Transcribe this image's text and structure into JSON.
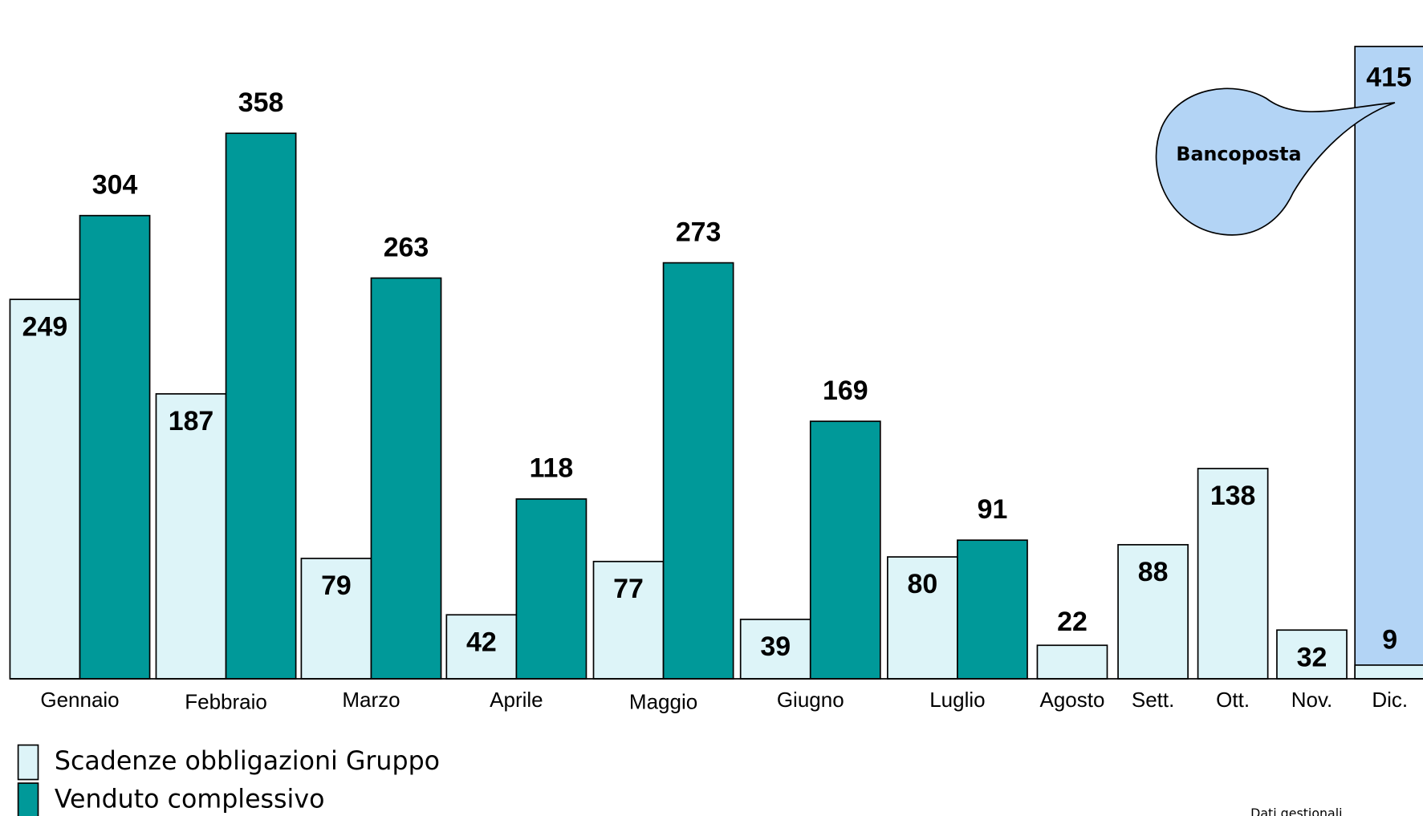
{
  "chart_data": {
    "type": "bar",
    "categories": [
      "Gennaio",
      "Febbraio",
      "Marzo",
      "Aprile",
      "Maggio",
      "Giugno",
      "Luglio",
      "Agosto",
      "Sett.",
      "Ott.",
      "Nov.",
      "Dic."
    ],
    "series": [
      {
        "name": "Scadenze obbligazioni Gruppo",
        "color": "#ddf4f8",
        "values": [
          249,
          187,
          79,
          42,
          77,
          39,
          80,
          22,
          88,
          138,
          32,
          9
        ]
      },
      {
        "name": "Venduto complessivo",
        "color": "#009999",
        "values": [
          304,
          358,
          263,
          118,
          273,
          169,
          91,
          null,
          null,
          null,
          null,
          415
        ]
      }
    ],
    "highlight": {
      "series": 1,
      "index": 11,
      "color": "#b3d4f5"
    },
    "annotation": "Bancoposta",
    "note": "Dati gestionali",
    "ylim": [
      0,
      440
    ],
    "legend": "bottom-left"
  }
}
